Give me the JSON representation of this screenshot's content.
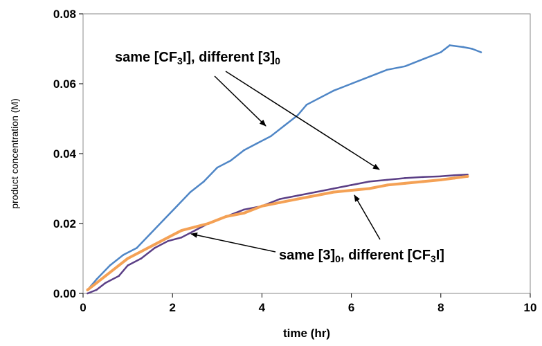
{
  "chart_data": {
    "type": "line",
    "title": "",
    "xlabel": "time (hr)",
    "ylabel": "product concentration (M)",
    "xlim": [
      0,
      10
    ],
    "ylim": [
      0,
      0.08
    ],
    "x_ticks": [
      "0",
      "2",
      "4",
      "6",
      "8",
      "10"
    ],
    "y_ticks": [
      "0.00",
      "0.02",
      "0.04",
      "0.06",
      "0.08"
    ],
    "grid": false,
    "legend": "none",
    "series": [
      {
        "color": "#4f86c6",
        "x": [
          0.1,
          0.3,
          0.6,
          0.9,
          1.2,
          1.5,
          1.8,
          2.1,
          2.4,
          2.7,
          3.0,
          3.3,
          3.6,
          3.9,
          4.2,
          4.5,
          4.8,
          5.0,
          5.3,
          5.6,
          6.0,
          6.4,
          6.8,
          7.2,
          7.6,
          8.0,
          8.2,
          8.5,
          8.7,
          8.9
        ],
        "y": [
          0.001,
          0.004,
          0.008,
          0.011,
          0.013,
          0.017,
          0.021,
          0.025,
          0.029,
          0.032,
          0.036,
          0.038,
          0.041,
          0.043,
          0.045,
          0.048,
          0.051,
          0.054,
          0.056,
          0.058,
          0.06,
          0.062,
          0.064,
          0.065,
          0.067,
          0.069,
          0.071,
          0.0705,
          0.07,
          0.069
        ]
      },
      {
        "color": "#5b3f86",
        "x": [
          0.1,
          0.3,
          0.5,
          0.8,
          1.0,
          1.3,
          1.6,
          1.9,
          2.2,
          2.5,
          2.8,
          3.2,
          3.6,
          4.0,
          4.4,
          4.8,
          5.2,
          5.6,
          6.0,
          6.4,
          6.8,
          7.2,
          7.6,
          8.0,
          8.3,
          8.6
        ],
        "y": [
          0.0,
          0.001,
          0.003,
          0.005,
          0.008,
          0.01,
          0.013,
          0.015,
          0.016,
          0.018,
          0.02,
          0.022,
          0.024,
          0.025,
          0.027,
          0.028,
          0.029,
          0.03,
          0.031,
          0.032,
          0.0325,
          0.033,
          0.0333,
          0.0335,
          0.0338,
          0.034
        ]
      },
      {
        "color": "#f4a155",
        "x": [
          0.1,
          0.3,
          0.5,
          0.8,
          1.0,
          1.3,
          1.6,
          1.9,
          2.2,
          2.5,
          2.8,
          3.2,
          3.6,
          4.0,
          4.4,
          4.8,
          5.2,
          5.6,
          6.0,
          6.4,
          6.8,
          7.2,
          7.6,
          8.0,
          8.3,
          8.6
        ],
        "y": [
          0.001,
          0.003,
          0.005,
          0.008,
          0.01,
          0.012,
          0.014,
          0.016,
          0.018,
          0.019,
          0.02,
          0.022,
          0.023,
          0.025,
          0.026,
          0.027,
          0.028,
          0.029,
          0.0295,
          0.03,
          0.031,
          0.0315,
          0.032,
          0.0325,
          0.033,
          0.0335
        ]
      }
    ],
    "annotations": [
      {
        "text": "same [CF3I], different [3]0",
        "parts": [
          {
            "t": "same [CF",
            "sub": false
          },
          {
            "t": "3",
            "sub": true
          },
          {
            "t": "I], different [3]",
            "sub": false
          },
          {
            "t": "0",
            "sub": true
          }
        ]
      },
      {
        "text": "same [3]0, different [CF3I]",
        "parts": [
          {
            "t": "same [3]",
            "sub": false
          },
          {
            "t": "0",
            "sub": true
          },
          {
            "t": ", different [CF",
            "sub": false
          },
          {
            "t": "3",
            "sub": true
          },
          {
            "t": "I]",
            "sub": false
          }
        ]
      }
    ]
  }
}
